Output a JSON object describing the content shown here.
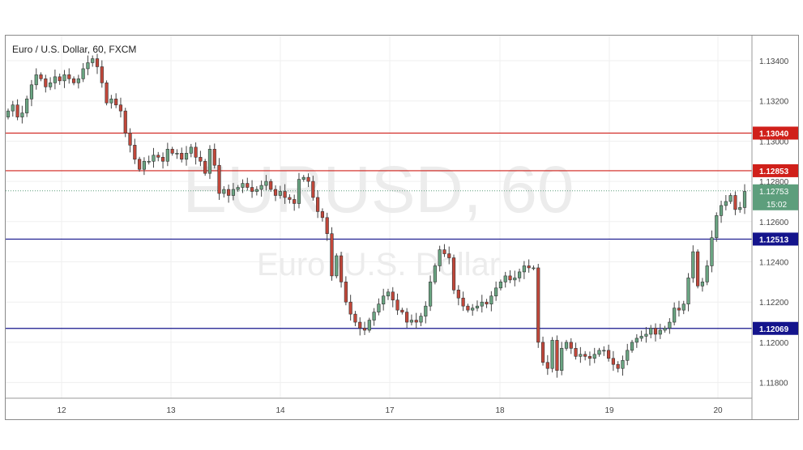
{
  "chart_data": {
    "type": "candlestick",
    "title": "Euro / U.S. Dollar, 60, FXCM",
    "watermark_symbol": "EURUSD, 60",
    "watermark_name": "Euro /U.S. Dollar",
    "x_tick_labels": [
      "12",
      "13",
      "14",
      "17",
      "18",
      "19",
      "20"
    ],
    "y_tick_labels": [
      "1.13400",
      "1.13200",
      "1.13000",
      "1.12800",
      "1.12600",
      "1.12400",
      "1.12200",
      "1.12000",
      "1.11800"
    ],
    "y_ticks": [
      1.134,
      1.132,
      1.13,
      1.128,
      1.126,
      1.124,
      1.122,
      1.12,
      1.118
    ],
    "ylim": [
      1.1168,
      1.1352
    ],
    "grid": true,
    "up_color": "#6aa582",
    "down_color": "#c2473a",
    "levels": [
      {
        "label": "1.13040",
        "value": 1.1304,
        "color": "#d0201a"
      },
      {
        "label": "1.12853",
        "value": 1.12853,
        "color": "#d0201a"
      },
      {
        "label": "1.12513",
        "value": 1.12513,
        "color": "#14148c"
      },
      {
        "label": "1.12069",
        "value": 1.12069,
        "color": "#14148c"
      }
    ],
    "last_price": {
      "label": "1.12753",
      "value": 1.12753,
      "color": "#5d9e7c",
      "countdown": "15:02"
    },
    "closes": [
      1.1315,
      1.1318,
      1.1312,
      1.1314,
      1.1321,
      1.1328,
      1.1333,
      1.1331,
      1.1327,
      1.1329,
      1.1332,
      1.133,
      1.1333,
      1.1331,
      1.1329,
      1.1331,
      1.1336,
      1.1339,
      1.1341,
      1.1337,
      1.1329,
      1.1319,
      1.1321,
      1.1318,
      1.1315,
      1.1304,
      1.1298,
      1.1291,
      1.1286,
      1.129,
      1.129,
      1.1293,
      1.1292,
      1.129,
      1.1296,
      1.1294,
      1.1294,
      1.1291,
      1.1294,
      1.1297,
      1.1292,
      1.129,
      1.1284,
      1.1296,
      1.1288,
      1.1274,
      1.1276,
      1.1273,
      1.1276,
      1.1277,
      1.1279,
      1.1277,
      1.1275,
      1.1276,
      1.1278,
      1.128,
      1.1276,
      1.1273,
      1.1275,
      1.1272,
      1.1271,
      1.1269,
      1.1281,
      1.1282,
      1.128,
      1.1272,
      1.1265,
      1.1262,
      1.1254,
      1.1233,
      1.1243,
      1.123,
      1.122,
      1.1214,
      1.121,
      1.1207,
      1.1206,
      1.1211,
      1.1215,
      1.1219,
      1.1223,
      1.1225,
      1.1221,
      1.1216,
      1.1215,
      1.121,
      1.1211,
      1.121,
      1.1213,
      1.1218,
      1.123,
      1.1238,
      1.1246,
      1.1244,
      1.1242,
      1.1226,
      1.1222,
      1.1218,
      1.1216,
      1.1217,
      1.1218,
      1.122,
      1.1219,
      1.1223,
      1.1227,
      1.123,
      1.1233,
      1.1231,
      1.1232,
      1.1235,
      1.1238,
      1.1237,
      1.1237,
      1.12,
      1.119,
      1.1187,
      1.1201,
      1.1186,
      1.1197,
      1.12,
      1.1197,
      1.1193,
      1.1194,
      1.1193,
      1.1192,
      1.1194,
      1.1196,
      1.1196,
      1.1192,
      1.1189,
      1.1187,
      1.1191,
      1.1196,
      1.12,
      1.1202,
      1.1203,
      1.1204,
      1.1207,
      1.1204,
      1.1206,
      1.1207,
      1.121,
      1.1217,
      1.1216,
      1.1219,
      1.1232,
      1.1245,
      1.1228,
      1.123,
      1.1238,
      1.1252,
      1.1263,
      1.1268,
      1.127,
      1.1273,
      1.1266,
      1.1267,
      1.1275
    ]
  },
  "last_label": "1.12753",
  "countdown": "15:02"
}
